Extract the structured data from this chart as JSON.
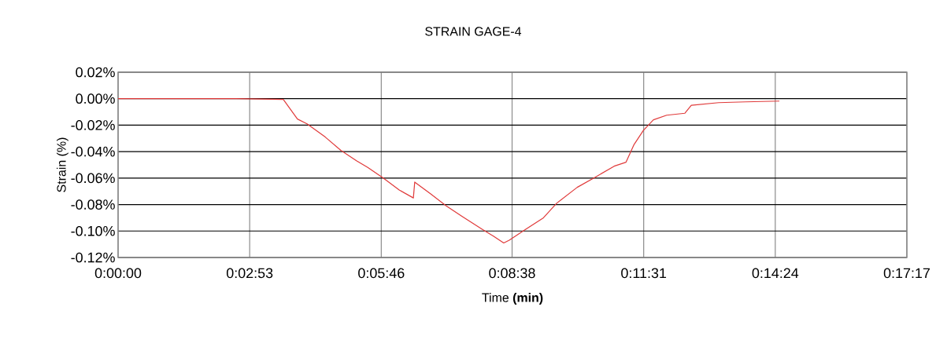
{
  "chart_data": {
    "type": "line",
    "title": "STRAIN GAGE-4",
    "xlabel": "Time **(min)**",
    "ylabel": "Strain (%)",
    "grid": true,
    "xlim": [
      0,
      17.2833
    ],
    "xticks": [
      {
        "value": 0,
        "label": "0:00:00"
      },
      {
        "value": 2.8833,
        "label": "0:02:53"
      },
      {
        "value": 5.7667,
        "label": "0:05:46"
      },
      {
        "value": 8.6333,
        "label": "0:08:38"
      },
      {
        "value": 11.5167,
        "label": "0:11:31"
      },
      {
        "value": 14.4,
        "label": "0:14:24"
      },
      {
        "value": 17.2833,
        "label": "0:17:17"
      }
    ],
    "ylim": [
      -0.12,
      0.02
    ],
    "yticks": [
      {
        "value": 0.02,
        "label": "0.02%"
      },
      {
        "value": 0,
        "label": "0.00%"
      },
      {
        "value": -0.02,
        "label": "-0.02%"
      },
      {
        "value": -0.04,
        "label": "-0.04%"
      },
      {
        "value": -0.06,
        "label": "-0.06%"
      },
      {
        "value": -0.08,
        "label": "-0.08%"
      },
      {
        "value": -0.1,
        "label": "-0.10%"
      },
      {
        "value": -0.12,
        "label": "-0.12%"
      }
    ],
    "x": [
      0,
      0.86,
      1.73,
      2.59,
      3.62,
      3.93,
      4.14,
      4.54,
      4.88,
      5.23,
      5.47,
      5.81,
      6.16,
      6.47,
      6.5,
      6.85,
      7.19,
      7.54,
      7.99,
      8.23,
      8.45,
      8.57,
      8.92,
      9.32,
      9.61,
      10.06,
      10.47,
      10.87,
      11.13,
      11.3,
      11.51,
      11.73,
      12.02,
      12.42,
      12.56,
      13.16,
      13.75,
      14.49
    ],
    "series": [
      {
        "color": "#e03a3a",
        "values": [
          0,
          0,
          0,
          0,
          -0.0006,
          -0.0154,
          -0.019,
          -0.029,
          -0.039,
          -0.047,
          -0.052,
          -0.06,
          -0.069,
          -0.075,
          -0.063,
          -0.072,
          -0.081,
          -0.089,
          -0.099,
          -0.104,
          -0.109,
          -0.107,
          -0.099,
          -0.09,
          -0.079,
          -0.067,
          -0.059,
          -0.051,
          -0.048,
          -0.035,
          -0.024,
          -0.016,
          -0.0125,
          -0.011,
          -0.005,
          -0.003,
          -0.0024,
          -0.0018
        ]
      }
    ]
  }
}
